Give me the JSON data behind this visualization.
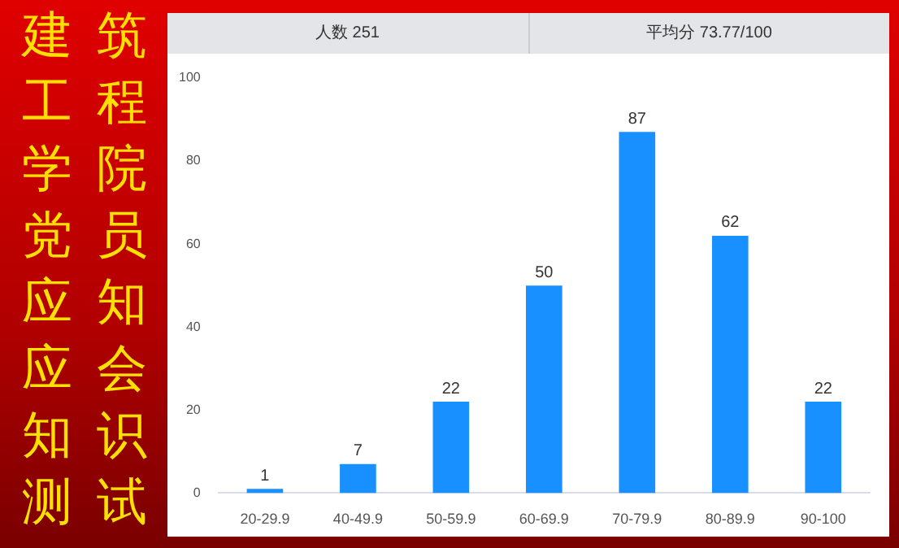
{
  "chart_data": {
    "type": "bar",
    "title": "建筑工程学院党员应知应会知识测试",
    "annotations": [
      "人数 251",
      "平均分 73.77/100"
    ],
    "categories": [
      "20-29.9",
      "40-49.9",
      "50-59.9",
      "60-69.9",
      "70-79.9",
      "80-89.9",
      "90-100"
    ],
    "values": [
      1,
      7,
      22,
      50,
      87,
      62,
      22
    ],
    "color": "#1890ff",
    "ylim": [
      0,
      100
    ],
    "yticks": [
      0,
      20,
      40,
      60,
      80,
      100
    ],
    "grid": false,
    "legend": false,
    "data_labels": true
  }
}
